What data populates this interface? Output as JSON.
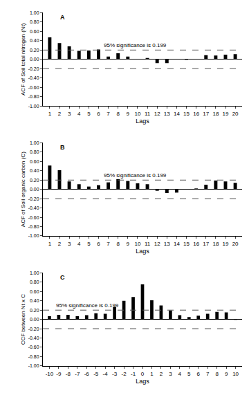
{
  "chart_data": [
    {
      "type": "bar",
      "panel": "A",
      "x": [
        1,
        2,
        3,
        4,
        5,
        6,
        7,
        8,
        9,
        10,
        11,
        12,
        13,
        14,
        15,
        16,
        17,
        18,
        19,
        20
      ],
      "values": [
        0.47,
        0.35,
        0.28,
        0.18,
        0.19,
        0.21,
        0.06,
        0.13,
        0.06,
        0.01,
        0.03,
        -0.08,
        -0.08,
        0.01,
        -0.01,
        0.01,
        0.09,
        0.08,
        0.1,
        0.11
      ],
      "color": "#000000",
      "x_label": "Lags",
      "y_label": "ACF of Soil total nitrogen (Nt)",
      "significance": 0.199,
      "significance_label": "95% significance is 0.199",
      "xlim": [
        0.3,
        20.7
      ],
      "xticks": [
        1,
        2,
        3,
        4,
        5,
        6,
        7,
        8,
        9,
        10,
        11,
        12,
        13,
        14,
        15,
        16,
        17,
        18,
        19,
        20
      ],
      "ylim": [
        -1,
        1
      ],
      "yticks": [
        {
          "value": -1,
          "label": "-1.00"
        },
        {
          "value": -0.8,
          "label": "-0.80"
        },
        {
          "value": -0.6,
          "label": "-0.60"
        },
        {
          "value": -0.4,
          "label": "-0.40"
        },
        {
          "value": -0.2,
          "label": "-0.20"
        },
        {
          "value": 0,
          "label": "0.00"
        },
        {
          "value": 0.2,
          "label": "0.20"
        },
        {
          "value": 0.4,
          "label": "0.40"
        },
        {
          "value": 0.6,
          "label": "0.60"
        },
        {
          "value": 0.8,
          "label": "0.80"
        },
        {
          "value": 1,
          "label": "1.00"
        }
      ]
    },
    {
      "type": "bar",
      "panel": "B",
      "x": [
        1,
        2,
        3,
        4,
        5,
        6,
        7,
        8,
        9,
        10,
        11,
        12,
        13,
        14,
        15,
        16,
        17,
        18,
        19,
        20
      ],
      "values": [
        0.51,
        0.41,
        0.17,
        0.11,
        0.06,
        0.09,
        0.15,
        0.22,
        0.18,
        0.13,
        0.11,
        -0.03,
        -0.08,
        -0.07,
        0.01,
        0.02,
        0.1,
        0.19,
        0.17,
        0.14
      ],
      "color": "#000000",
      "x_label": "Lags",
      "y_label": "ACF of Soil organic carbon (C)",
      "significance": 0.199,
      "significance_label": "95% significance is 0.199",
      "xlim": [
        0.3,
        20.7
      ],
      "xticks": [
        1,
        2,
        3,
        4,
        5,
        6,
        7,
        8,
        9,
        10,
        11,
        12,
        13,
        14,
        15,
        16,
        17,
        18,
        19,
        20
      ],
      "ylim": [
        -1,
        1
      ],
      "yticks": [
        {
          "value": -1,
          "label": "-1.00"
        },
        {
          "value": -0.8,
          "label": "-0.80"
        },
        {
          "value": -0.6,
          "label": "-0.60"
        },
        {
          "value": -0.4,
          "label": "-0.40"
        },
        {
          "value": -0.2,
          "label": "-0.20"
        },
        {
          "value": 0,
          "label": "0.00"
        },
        {
          "value": 0.2,
          "label": "0.20"
        },
        {
          "value": 0.4,
          "label": "0.40"
        },
        {
          "value": 0.6,
          "label": "0.60"
        },
        {
          "value": 0.8,
          "label": "0.80"
        },
        {
          "value": 1,
          "label": "1.00"
        }
      ]
    },
    {
      "type": "bar",
      "panel": "C",
      "x": [
        -10,
        -9,
        -8,
        -7,
        -6,
        -5,
        -4,
        -3,
        -2,
        -1,
        0,
        1,
        2,
        3,
        4,
        5,
        6,
        7,
        8,
        9,
        10
      ],
      "values": [
        0.07,
        0.1,
        0.1,
        0.07,
        0.09,
        0.13,
        0.12,
        0.27,
        0.4,
        0.48,
        0.75,
        0.41,
        0.3,
        0.19,
        0.09,
        0.05,
        0.08,
        0.12,
        0.16,
        0.15,
        -0.01
      ],
      "color": "#000000",
      "x_label": "Lags",
      "y_label": "CCF between Nt x C",
      "significance": 0.199,
      "significance_label": "95% significance is 0.199",
      "xlim": [
        -10.7,
        10.7
      ],
      "xticks": [
        -10,
        -9,
        -8,
        -7,
        -6,
        -5,
        -4,
        -3,
        -2,
        -1,
        0,
        1,
        2,
        3,
        4,
        5,
        6,
        7,
        8,
        9,
        10
      ],
      "ylim": [
        -1,
        1
      ],
      "yticks": [
        {
          "value": -1,
          "label": "-1.00"
        },
        {
          "value": -0.8,
          "label": "-0.80"
        },
        {
          "value": -0.6,
          "label": "-0.60"
        },
        {
          "value": -0.4,
          "label": "-0.40"
        },
        {
          "value": -0.2,
          "label": "-0.20"
        },
        {
          "value": 0,
          "label": "0.00"
        },
        {
          "value": 0.2,
          "label": "0.20"
        },
        {
          "value": 0.4,
          "label": "0.40"
        },
        {
          "value": 0.6,
          "label": "0.60"
        },
        {
          "value": 0.8,
          "label": "0.80"
        },
        {
          "value": 1,
          "label": "1.00"
        }
      ]
    }
  ]
}
